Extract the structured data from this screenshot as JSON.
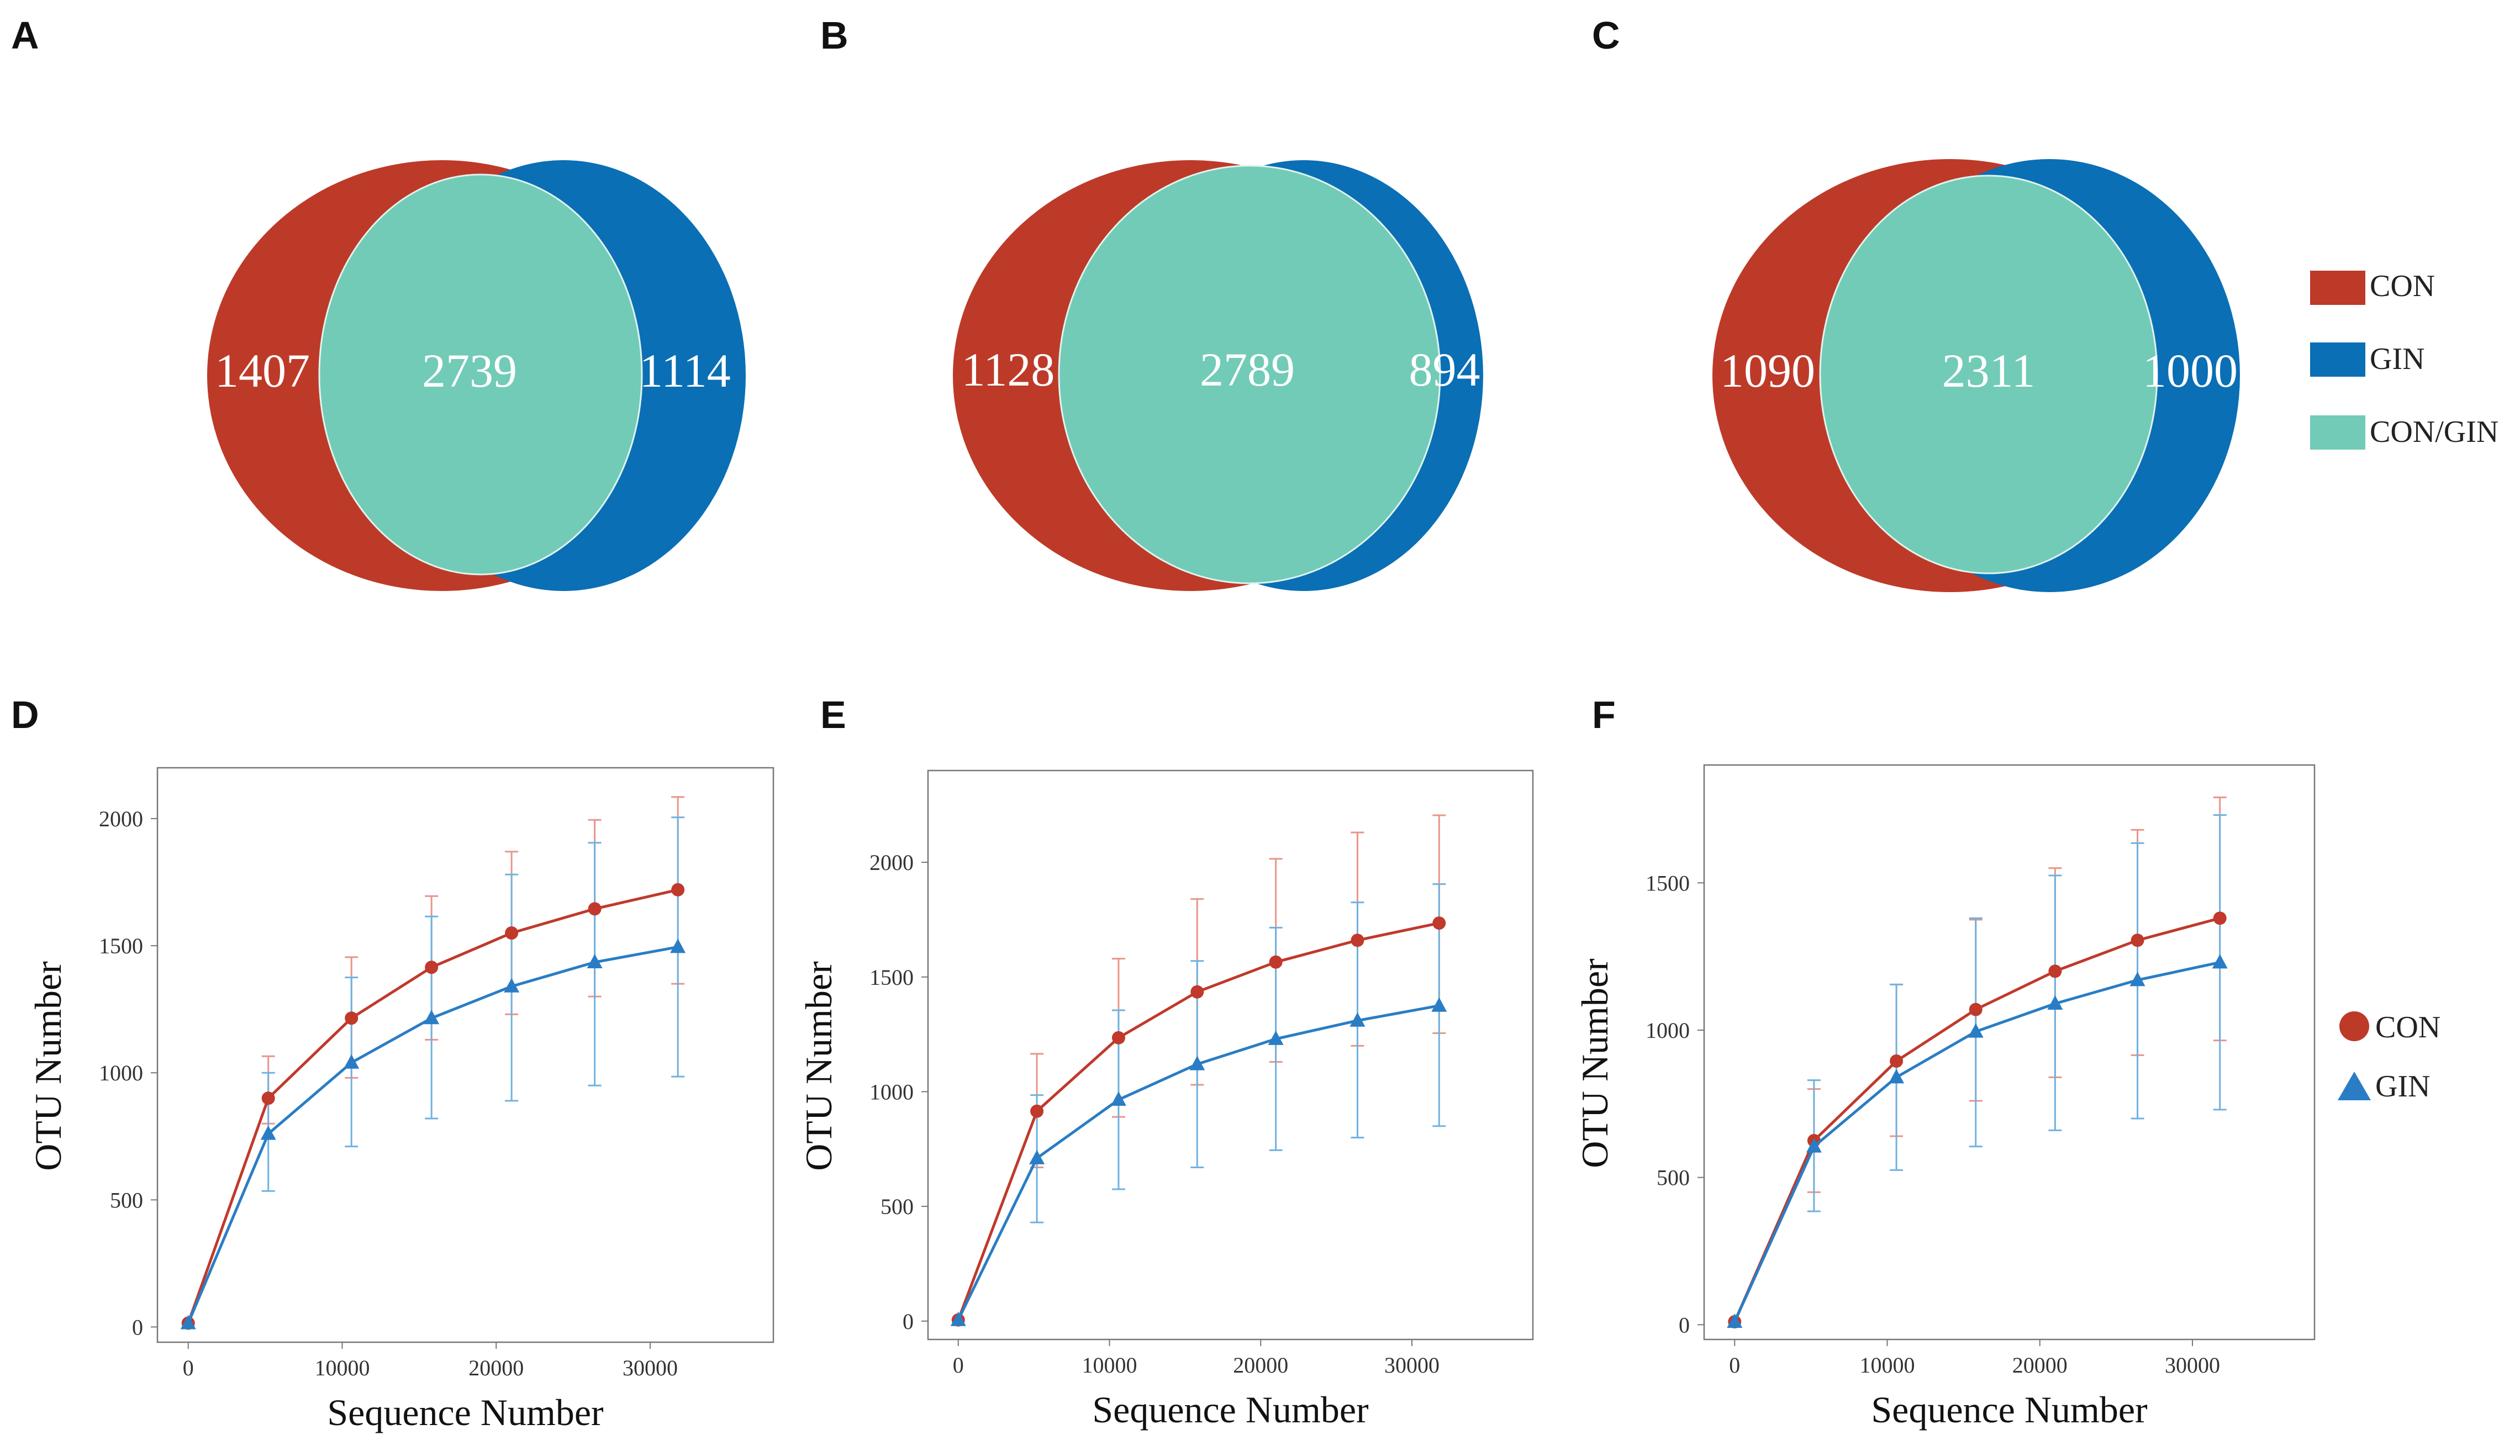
{
  "panels": {
    "A": "A",
    "B": "B",
    "C": "C",
    "D": "D",
    "E": "E",
    "F": "F"
  },
  "venn": [
    {
      "panel": "A",
      "left": "1407",
      "center": "2739",
      "right": "1114"
    },
    {
      "panel": "B",
      "left": "1128",
      "center": "2789",
      "right": "894"
    },
    {
      "panel": "C",
      "left": "1090",
      "center": "2311",
      "right": "1000"
    }
  ],
  "venn_legend": [
    {
      "label": "CON",
      "color": "#bd3a29"
    },
    {
      "label": "GIN",
      "color": "#0a6fb5"
    },
    {
      "label": "CON/GIN",
      "color": "#72cbb6"
    }
  ],
  "curve_legend": [
    {
      "label": "CON",
      "color": "#bd3a29",
      "marker": "circle"
    },
    {
      "label": "GIN",
      "color": "#2a7dc4",
      "marker": "triangle"
    }
  ],
  "chart_data": [
    {
      "panel": "D",
      "type": "line",
      "xlabel": "Sequence Number",
      "ylabel": "OTU Number",
      "xlim": [
        -2000,
        38000
      ],
      "ylim": [
        -60,
        2200
      ],
      "xticks": [
        0,
        10000,
        20000,
        30000
      ],
      "yticks": [
        0,
        500,
        1000,
        1500,
        2000
      ],
      "series": [
        {
          "name": "CON",
          "x": [
            0,
            5200,
            10600,
            15800,
            21000,
            26400,
            31800
          ],
          "values": [
            15,
            900,
            1215,
            1415,
            1550,
            1645,
            1720
          ],
          "err_low": [
            15,
            800,
            980,
            1130,
            1230,
            1300,
            1350
          ],
          "err_high": [
            15,
            1065,
            1455,
            1695,
            1870,
            1995,
            2085
          ]
        },
        {
          "name": "GIN",
          "x": [
            0,
            5200,
            10600,
            15800,
            21000,
            26400,
            31800
          ],
          "values": [
            15,
            760,
            1040,
            1215,
            1340,
            1435,
            1495
          ],
          "err_low": [
            15,
            535,
            710,
            820,
            890,
            950,
            985
          ],
          "err_high": [
            15,
            1000,
            1375,
            1615,
            1780,
            1905,
            2005
          ]
        }
      ]
    },
    {
      "panel": "E",
      "type": "line",
      "xlabel": "Sequence Number",
      "ylabel": "OTU Number",
      "xlim": [
        -2000,
        38000
      ],
      "ylim": [
        -80,
        2400
      ],
      "xticks": [
        0,
        10000,
        20000,
        30000
      ],
      "yticks": [
        0,
        500,
        1000,
        1500,
        2000
      ],
      "series": [
        {
          "name": "CON",
          "x": [
            0,
            5200,
            10600,
            15800,
            21000,
            26400,
            31800
          ],
          "values": [
            5,
            915,
            1235,
            1435,
            1565,
            1660,
            1735
          ],
          "err_low": [
            5,
            670,
            890,
            1030,
            1130,
            1200,
            1255
          ],
          "err_high": [
            5,
            1165,
            1580,
            1840,
            2015,
            2130,
            2205
          ]
        },
        {
          "name": "GIN",
          "x": [
            0,
            5200,
            10600,
            15800,
            21000,
            26400,
            31800
          ],
          "values": [
            5,
            710,
            965,
            1120,
            1230,
            1310,
            1375
          ],
          "err_low": [
            5,
            430,
            575,
            670,
            745,
            800,
            850
          ],
          "err_high": [
            5,
            985,
            1355,
            1570,
            1715,
            1825,
            1905
          ]
        }
      ]
    },
    {
      "panel": "F",
      "type": "line",
      "xlabel": "Sequence Number",
      "ylabel": "OTU Number",
      "xlim": [
        -2000,
        38000
      ],
      "ylim": [
        -50,
        1900
      ],
      "xticks": [
        0,
        10000,
        20000,
        30000
      ],
      "yticks": [
        0,
        500,
        1000,
        1500
      ],
      "series": [
        {
          "name": "CON",
          "x": [
            0,
            5200,
            10600,
            15800,
            21000,
            26400,
            31800
          ],
          "values": [
            10,
            625,
            895,
            1070,
            1200,
            1305,
            1380
          ],
          "err_low": [
            10,
            450,
            640,
            760,
            840,
            915,
            965
          ],
          "err_high": [
            10,
            800,
            1155,
            1375,
            1550,
            1680,
            1790
          ]
        },
        {
          "name": "GIN",
          "x": [
            0,
            5200,
            10600,
            15800,
            21000,
            26400,
            31800
          ],
          "values": [
            10,
            605,
            840,
            995,
            1090,
            1170,
            1230
          ],
          "err_low": [
            10,
            385,
            525,
            605,
            660,
            700,
            730
          ],
          "err_high": [
            10,
            830,
            1155,
            1380,
            1525,
            1635,
            1730
          ]
        }
      ]
    }
  ]
}
